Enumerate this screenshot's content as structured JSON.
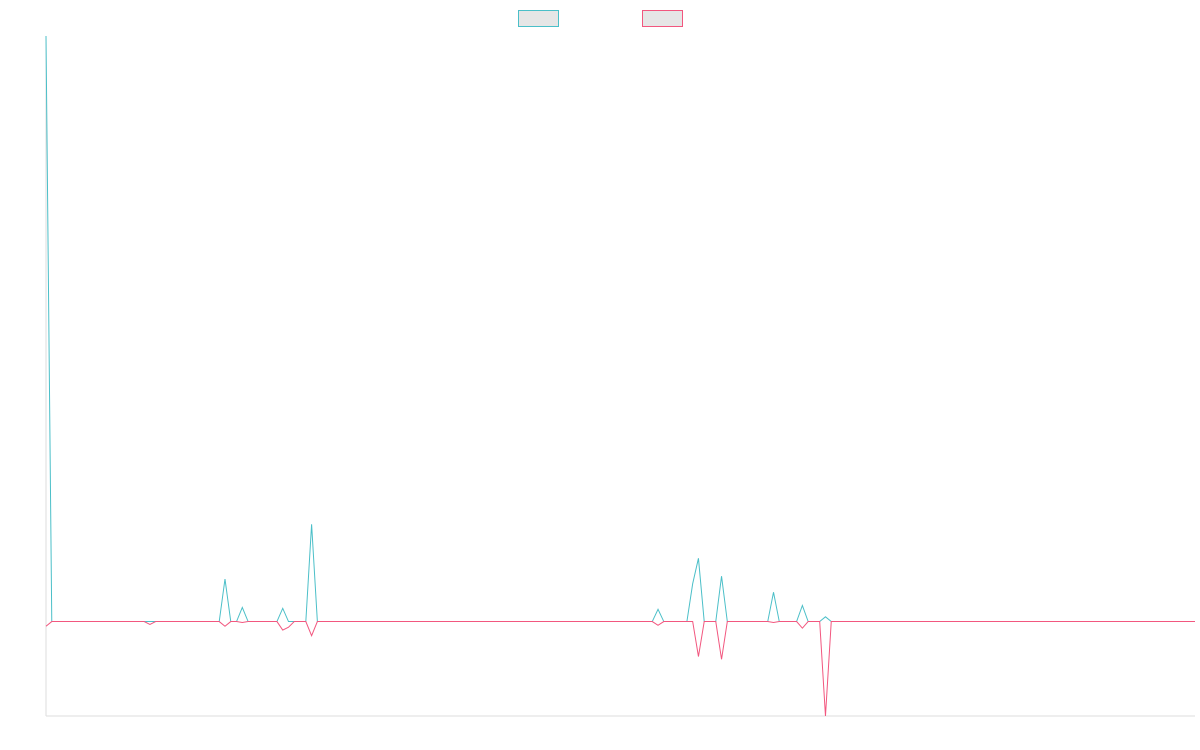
{
  "colors": {
    "series_a": "#4bbfc8",
    "series_b": "#f2577f",
    "legend_fill": "#e6e6e6",
    "axis": "#dddddd"
  },
  "chart_data": {
    "type": "line",
    "legend_placement": "top-center",
    "grid": false,
    "title": "",
    "xlabel": "",
    "ylabel": "",
    "x_count": 200,
    "ylim": [
      -100,
      620
    ],
    "series": [
      {
        "key": "a",
        "name": "",
        "baseline": 0,
        "points": [
          [
            0,
            620
          ],
          [
            1,
            0
          ],
          [
            30,
            0
          ],
          [
            31,
            45
          ],
          [
            32,
            0
          ],
          [
            33,
            0
          ],
          [
            34,
            15
          ],
          [
            35,
            0
          ],
          [
            40,
            0
          ],
          [
            41,
            14
          ],
          [
            42,
            0
          ],
          [
            45,
            0
          ],
          [
            46,
            103
          ],
          [
            47,
            0
          ],
          [
            105,
            0
          ],
          [
            106,
            13
          ],
          [
            107,
            0
          ],
          [
            111,
            0
          ],
          [
            112,
            40
          ],
          [
            113,
            67
          ],
          [
            114,
            0
          ],
          [
            116,
            0
          ],
          [
            117,
            48
          ],
          [
            118,
            0
          ],
          [
            125,
            0
          ],
          [
            126,
            31
          ],
          [
            127,
            0
          ],
          [
            130,
            0
          ],
          [
            131,
            17
          ],
          [
            132,
            0
          ],
          [
            134,
            0
          ],
          [
            135,
            5
          ],
          [
            136,
            0
          ],
          [
            199,
            0
          ]
        ]
      },
      {
        "key": "b",
        "name": "",
        "baseline": 0,
        "points": [
          [
            0,
            -5
          ],
          [
            1,
            0
          ],
          [
            17,
            0
          ],
          [
            18,
            -3
          ],
          [
            19,
            0
          ],
          [
            30,
            0
          ],
          [
            31,
            -5
          ],
          [
            32,
            0
          ],
          [
            33,
            0
          ],
          [
            34,
            -1
          ],
          [
            35,
            0
          ],
          [
            40,
            0
          ],
          [
            41,
            -9
          ],
          [
            42,
            -6
          ],
          [
            43,
            0
          ],
          [
            45,
            0
          ],
          [
            46,
            -15
          ],
          [
            47,
            0
          ],
          [
            105,
            0
          ],
          [
            106,
            -4
          ],
          [
            107,
            0
          ],
          [
            112,
            0
          ],
          [
            113,
            -37
          ],
          [
            114,
            0
          ],
          [
            116,
            0
          ],
          [
            117,
            -40
          ],
          [
            118,
            0
          ],
          [
            125,
            0
          ],
          [
            126,
            -1
          ],
          [
            127,
            0
          ],
          [
            130,
            0
          ],
          [
            131,
            -7
          ],
          [
            132,
            0
          ],
          [
            134,
            0
          ],
          [
            135,
            -100
          ],
          [
            136,
            0
          ],
          [
            199,
            0
          ]
        ]
      }
    ]
  }
}
